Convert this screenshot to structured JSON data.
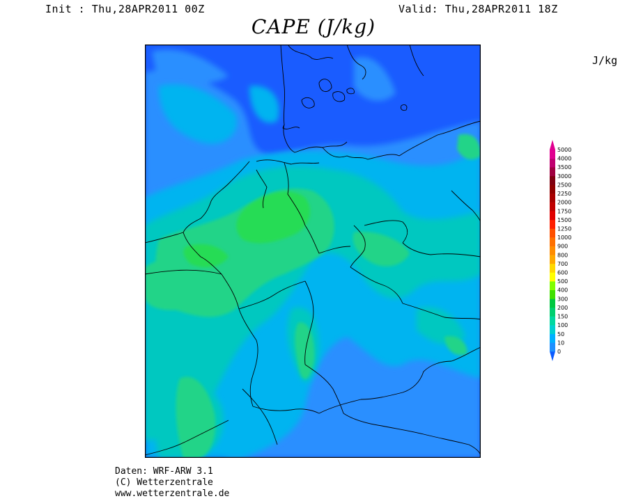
{
  "header": {
    "init": "Init : Thu,28APR2011 00Z",
    "valid": "Valid: Thu,28APR2011 18Z",
    "title": "CAPE (J/kg)"
  },
  "legend": {
    "unit": "J/kg",
    "levels": [
      "0",
      "10",
      "50",
      "100",
      "150",
      "200",
      "300",
      "400",
      "500",
      "600",
      "700",
      "800",
      "900",
      "1000",
      "1250",
      "1500",
      "1750",
      "2000",
      "2250",
      "2500",
      "3000",
      "3500",
      "4000",
      "5000"
    ],
    "colors": [
      "#0a5aff",
      "#1e90ff",
      "#00b0ff",
      "#00d0d0",
      "#00d8a0",
      "#00d070",
      "#00c840",
      "#40e000",
      "#80ff00",
      "#ffff00",
      "#ffd800",
      "#ffa800",
      "#ff8c00",
      "#ff7000",
      "#ff5000",
      "#ff2000",
      "#e00000",
      "#c00000",
      "#a80000",
      "#900000",
      "#800010",
      "#a00040",
      "#c00070",
      "#e00090"
    ]
  },
  "map": {
    "colors": {
      "background": "#1a5cff",
      "low": "#2a8fff",
      "mid": "#00b4f0",
      "teal": "#00c8c0",
      "green": "#22d488",
      "bright": "#28dc55"
    }
  },
  "footer": {
    "line1": "Daten: WRF-ARW 3.1",
    "line2": "(C) Wetterzentrale",
    "line3": "www.wetterzentrale.de"
  }
}
